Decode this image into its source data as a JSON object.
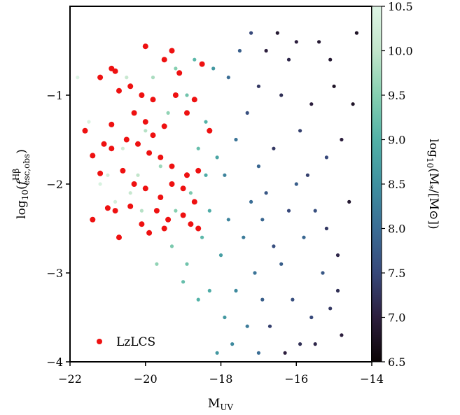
{
  "chart_data": {
    "type": "scatter",
    "title": "",
    "xlabel": "M",
    "xlabel_sub": "UV",
    "ylabel": "log10(f esc,obs Hβ)",
    "ylabel_parts": {
      "log": "log",
      "log_sub": "10",
      "open": "(",
      "f": "f",
      "f_sup": "Hβ",
      "f_sub": "esc,obs",
      "close": ")"
    },
    "xlim": [
      -22,
      -14
    ],
    "ylim": [
      -4,
      0
    ],
    "xticks": [
      -22,
      -20,
      -18,
      -16,
      -14
    ],
    "xtick_labels": [
      "−22",
      "−20",
      "−18",
      "−16",
      "−14"
    ],
    "yticks": [
      -4,
      -3,
      -2,
      -1
    ],
    "ytick_labels": [
      "−4",
      "−3",
      "−2",
      "−1"
    ],
    "grid": false,
    "legend": {
      "placement": "bottom-left",
      "entries": [
        {
          "label": "LzLCS",
          "color": "#ee1111"
        }
      ]
    },
    "colorbar": {
      "label": "log10(M*/[M⊙])",
      "label_parts": {
        "log": "log",
        "log_sub": "10",
        "body": "(M",
        "star": "*",
        "unit": "/[M",
        "sun": "⊙",
        "end": "])"
      },
      "range": [
        6.5,
        10.5
      ],
      "ticks": [
        6.5,
        7.0,
        7.5,
        8.0,
        8.5,
        9.0,
        9.5,
        10.0,
        10.5
      ],
      "tick_labels": [
        "6.5",
        "7.0",
        "7.5",
        "8.0",
        "8.5",
        "9.0",
        "9.5",
        "10.0",
        "10.5"
      ],
      "colormap_stops": [
        "#0b0405",
        "#2c1e3d",
        "#37487a",
        "#3a6d95",
        "#3f91a0",
        "#52b2a7",
        "#85cfb0",
        "#c2e5cb",
        "#def5e5"
      ]
    },
    "series": [
      {
        "kind": "simulated-galaxies",
        "colored_by": "log10 stellar mass",
        "points": [
          [
            -16.5,
            -0.3,
            6.9
          ],
          [
            -16.8,
            -0.5,
            7.0
          ],
          [
            -16.2,
            -0.6,
            7.1
          ],
          [
            -17.0,
            -0.9,
            7.3
          ],
          [
            -16.4,
            -1.0,
            7.2
          ],
          [
            -15.6,
            -1.1,
            7.0
          ],
          [
            -15.9,
            -1.4,
            7.4
          ],
          [
            -16.6,
            -1.6,
            7.3
          ],
          [
            -17.3,
            -1.2,
            7.6
          ],
          [
            -15.2,
            -1.7,
            7.5
          ],
          [
            -16.0,
            -2.0,
            7.8
          ],
          [
            -15.5,
            -2.3,
            7.6
          ],
          [
            -16.8,
            -2.1,
            7.7
          ],
          [
            -15.8,
            -2.6,
            7.9
          ],
          [
            -16.4,
            -2.9,
            7.8
          ],
          [
            -15.3,
            -3.0,
            7.7
          ],
          [
            -16.1,
            -3.3,
            7.6
          ],
          [
            -15.6,
            -3.5,
            7.5
          ],
          [
            -16.7,
            -3.6,
            7.4
          ],
          [
            -15.9,
            -3.8,
            7.2
          ],
          [
            -16.3,
            -3.9,
            7.0
          ],
          [
            -15.1,
            -3.4,
            7.3
          ],
          [
            -14.9,
            -2.8,
            7.1
          ],
          [
            -14.6,
            -2.2,
            6.9
          ],
          [
            -14.8,
            -1.5,
            7.0
          ],
          [
            -15.0,
            -0.9,
            6.8
          ],
          [
            -14.4,
            -0.3,
            6.8
          ],
          [
            -15.4,
            -0.4,
            6.9
          ],
          [
            -17.5,
            -0.5,
            7.8
          ],
          [
            -17.8,
            -0.8,
            8.0
          ],
          [
            -17.6,
            -1.5,
            8.1
          ],
          [
            -17.9,
            -1.9,
            8.3
          ],
          [
            -17.2,
            -2.2,
            8.0
          ],
          [
            -17.4,
            -2.6,
            8.2
          ],
          [
            -17.1,
            -3.0,
            8.1
          ],
          [
            -17.6,
            -3.2,
            8.4
          ],
          [
            -17.3,
            -3.6,
            8.2
          ],
          [
            -17.0,
            -3.9,
            8.0
          ],
          [
            -16.9,
            -2.4,
            7.9
          ],
          [
            -18.0,
            -2.8,
            8.7
          ],
          [
            -18.3,
            -2.3,
            8.9
          ],
          [
            -18.1,
            -1.7,
            8.8
          ],
          [
            -18.4,
            -1.3,
            9.0
          ],
          [
            -18.2,
            -0.7,
            8.6
          ],
          [
            -18.7,
            -0.6,
            9.1
          ],
          [
            -18.9,
            -1.0,
            9.3
          ],
          [
            -18.6,
            -1.6,
            9.2
          ],
          [
            -18.8,
            -2.1,
            9.4
          ],
          [
            -18.5,
            -2.6,
            9.1
          ],
          [
            -18.9,
            -2.9,
            9.3
          ],
          [
            -18.3,
            -3.2,
            8.9
          ],
          [
            -17.9,
            -3.5,
            8.6
          ],
          [
            -17.7,
            -3.8,
            8.4
          ],
          [
            -19.2,
            -0.7,
            9.5
          ],
          [
            -19.4,
            -1.2,
            9.6
          ],
          [
            -19.6,
            -1.8,
            9.7
          ],
          [
            -19.2,
            -2.3,
            9.5
          ],
          [
            -19.5,
            -2.5,
            9.7
          ],
          [
            -19.8,
            -0.8,
            9.8
          ],
          [
            -20.0,
            -1.4,
            9.9
          ],
          [
            -20.2,
            -1.9,
            10.0
          ],
          [
            -20.4,
            -2.1,
            10.1
          ],
          [
            -20.1,
            -2.3,
            9.9
          ],
          [
            -20.6,
            -1.6,
            10.2
          ],
          [
            -20.8,
            -2.2,
            10.3
          ],
          [
            -21.0,
            -1.9,
            10.3
          ],
          [
            -21.2,
            -2.0,
            10.4
          ],
          [
            -20.5,
            -0.8,
            10.1
          ],
          [
            -21.5,
            -1.3,
            10.4
          ],
          [
            -21.8,
            -0.8,
            10.5
          ],
          [
            -19.0,
            -3.1,
            9.2
          ],
          [
            -18.6,
            -3.3,
            9.0
          ],
          [
            -17.0,
            -1.8,
            7.9
          ],
          [
            -16.6,
            -2.7,
            7.6
          ],
          [
            -16.2,
            -2.3,
            7.5
          ],
          [
            -15.7,
            -1.9,
            7.4
          ],
          [
            -15.2,
            -2.5,
            7.3
          ],
          [
            -14.9,
            -3.2,
            7.2
          ],
          [
            -15.5,
            -3.8,
            7.1
          ],
          [
            -17.2,
            -0.3,
            7.5
          ],
          [
            -16.0,
            -0.4,
            7.0
          ],
          [
            -17.8,
            -2.4,
            8.3
          ],
          [
            -18.1,
            -3.9,
            8.6
          ],
          [
            -16.9,
            -3.3,
            7.8
          ],
          [
            -15.1,
            -0.6,
            6.9
          ],
          [
            -14.5,
            -1.1,
            6.8
          ],
          [
            -14.8,
            -3.7,
            7.0
          ],
          [
            -19.7,
            -2.9,
            9.6
          ],
          [
            -19.3,
            -2.7,
            9.4
          ],
          [
            -18.4,
            -1.9,
            8.9
          ]
        ]
      },
      {
        "name": "LzLCS",
        "color": "#ee1111",
        "points": [
          [
            -20.0,
            -0.45
          ],
          [
            -20.9,
            -0.7
          ],
          [
            -20.8,
            -0.73
          ],
          [
            -21.2,
            -0.8
          ],
          [
            -19.5,
            -0.6
          ],
          [
            -19.1,
            -0.75
          ],
          [
            -19.3,
            -0.5
          ],
          [
            -18.5,
            -0.65
          ],
          [
            -20.7,
            -0.95
          ],
          [
            -20.4,
            -0.9
          ],
          [
            -20.1,
            -1.0
          ],
          [
            -19.8,
            -1.05
          ],
          [
            -19.2,
            -1.0
          ],
          [
            -18.7,
            -1.05
          ],
          [
            -20.3,
            -1.2
          ],
          [
            -20.0,
            -1.3
          ],
          [
            -19.5,
            -1.35
          ],
          [
            -18.9,
            -1.2
          ],
          [
            -20.9,
            -1.33
          ],
          [
            -20.5,
            -1.5
          ],
          [
            -20.2,
            -1.55
          ],
          [
            -19.9,
            -1.65
          ],
          [
            -19.6,
            -1.7
          ],
          [
            -19.3,
            -1.8
          ],
          [
            -18.9,
            -1.9
          ],
          [
            -18.6,
            -1.85
          ],
          [
            -21.1,
            -1.55
          ],
          [
            -21.2,
            -1.88
          ],
          [
            -20.6,
            -1.85
          ],
          [
            -20.3,
            -2.0
          ],
          [
            -20.0,
            -2.05
          ],
          [
            -19.6,
            -2.15
          ],
          [
            -19.3,
            -2.0
          ],
          [
            -19.0,
            -2.05
          ],
          [
            -18.7,
            -2.2
          ],
          [
            -21.4,
            -1.68
          ],
          [
            -20.8,
            -2.3
          ],
          [
            -20.4,
            -2.25
          ],
          [
            -20.1,
            -2.45
          ],
          [
            -19.7,
            -2.3
          ],
          [
            -19.4,
            -2.4
          ],
          [
            -19.0,
            -2.35
          ],
          [
            -18.6,
            -2.5
          ],
          [
            -21.4,
            -2.4
          ],
          [
            -21.0,
            -2.27
          ],
          [
            -20.7,
            -2.6
          ],
          [
            -19.9,
            -2.55
          ],
          [
            -19.5,
            -2.5
          ],
          [
            -18.8,
            -2.45
          ],
          [
            -18.3,
            -1.4
          ],
          [
            -21.6,
            -1.4
          ],
          [
            -19.8,
            -1.45
          ],
          [
            -20.9,
            -1.6
          ]
        ]
      }
    ]
  }
}
